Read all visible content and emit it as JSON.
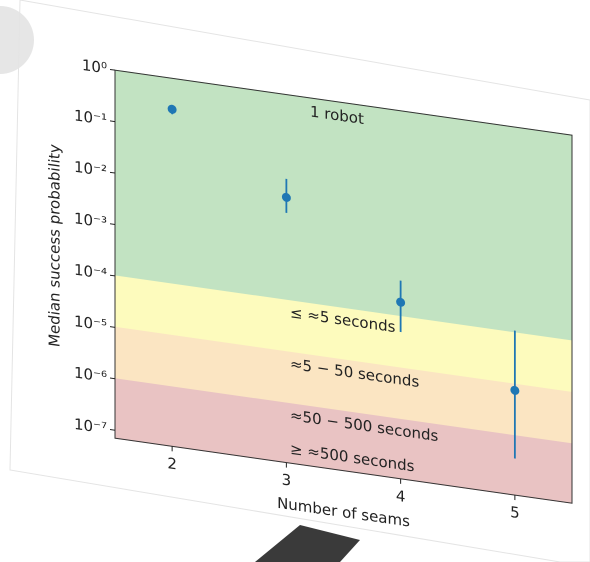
{
  "chart_data": {
    "type": "scatter",
    "x_label": "Number of seams",
    "y_label": "Median success probability",
    "x": [
      2,
      3,
      4,
      5
    ],
    "values": [
      0.25,
      0.01,
      0.00019,
      7.6e-06
    ],
    "err_low": [
      0.2,
      0.005,
      5e-05,
      3.6e-07
    ],
    "err_high": [
      0.3,
      0.023,
      0.0005,
      0.00011
    ],
    "color": "#1f77b4",
    "log_y": true,
    "xlim": [
      1.5,
      5.5
    ],
    "xticks": [
      2,
      3,
      4,
      5
    ],
    "ylim": [
      7e-08,
      1
    ],
    "yticks": [
      {
        "value": 1,
        "label": "10⁰"
      },
      {
        "value": 0.1,
        "label": "10⁻¹"
      },
      {
        "value": 0.01,
        "label": "10⁻²"
      },
      {
        "value": 0.001,
        "label": "10⁻³"
      },
      {
        "value": 0.0001,
        "label": "10⁻⁴"
      },
      {
        "value": 1e-05,
        "label": "10⁻⁵"
      },
      {
        "value": 1e-06,
        "label": "10⁻⁶"
      },
      {
        "value": 1e-07,
        "label": "10⁻⁷"
      }
    ],
    "bands": [
      {
        "label": "1 robot",
        "from": 0.0001,
        "to": 1,
        "color": "#c2e3c2"
      },
      {
        "label": "≤ ≈5 seconds",
        "from": 1e-05,
        "to": 0.0001,
        "color": "#fdfbbd"
      },
      {
        "label": "≈5 − 50 seconds",
        "from": 1e-06,
        "to": 1e-05,
        "color": "#fbe5c2"
      },
      {
        "label": "≈50 − 500 seconds",
        "from": 7e-08,
        "to": 1e-06,
        "color": "#e9c3c3"
      }
    ],
    "annotations": [
      {
        "text": "≥ ≈500 seconds",
        "y": 1.3e-07
      }
    ]
  }
}
